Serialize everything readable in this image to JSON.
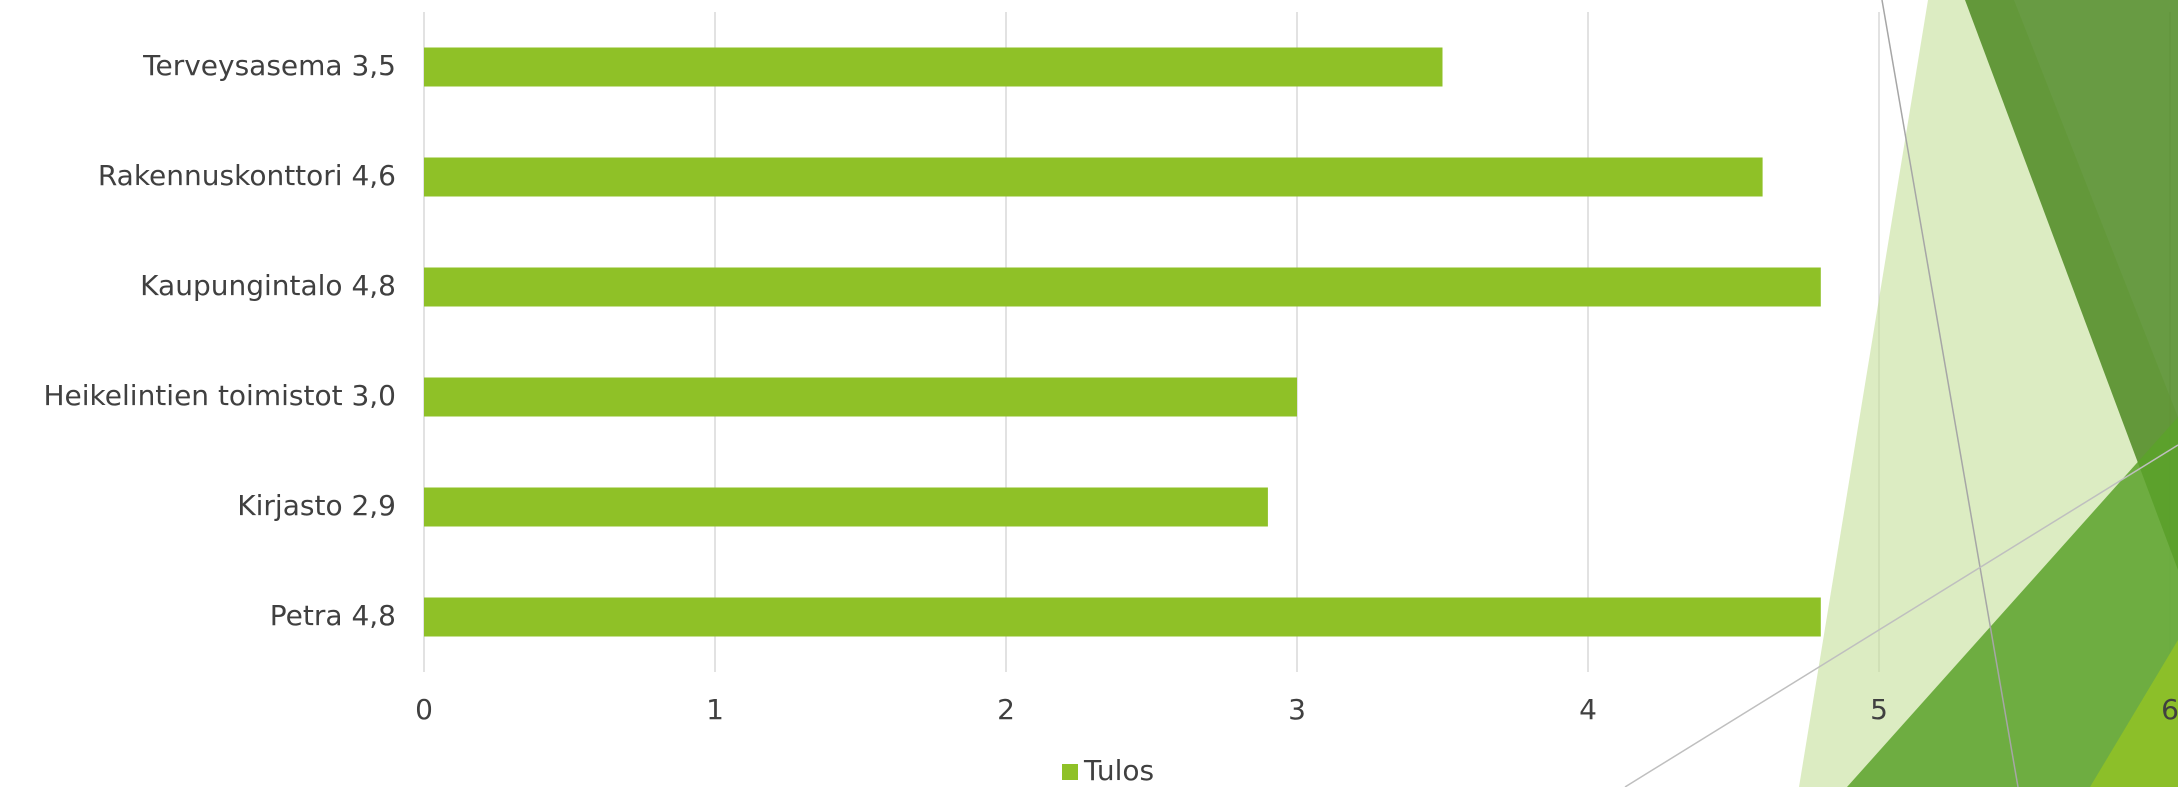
{
  "chart_data": {
    "type": "bar",
    "orientation": "horizontal",
    "categories": [
      "Terveysasema 3,5",
      "Rakennuskonttori 4,6",
      "Kaupungintalo 4,8",
      "Heikelintien toimistot 3,0",
      "Kirjasto 2,9",
      "Petra 4,8"
    ],
    "series": [
      {
        "name": "Tulos",
        "color": "#8fc127",
        "values": [
          3.5,
          4.6,
          4.8,
          3.0,
          2.9,
          4.8
        ]
      }
    ],
    "xlim": [
      0,
      6
    ],
    "xticks": [
      0,
      1,
      2,
      3,
      4,
      5,
      6
    ],
    "grid": true,
    "legend": "bottom"
  }
}
